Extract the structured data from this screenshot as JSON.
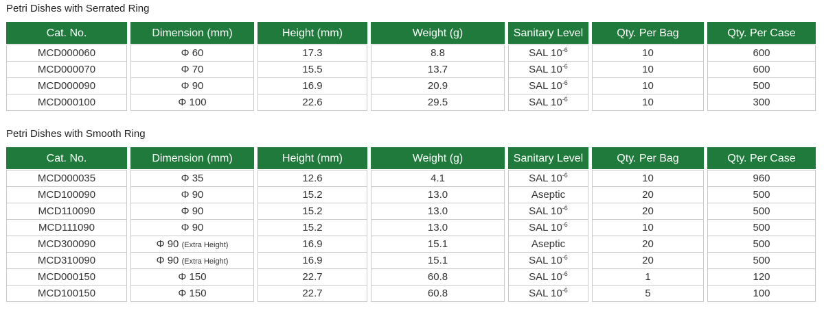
{
  "tables": [
    {
      "title": "Petri Dishes with Serrated Ring",
      "columns": [
        "Cat. No.",
        "Dimension (mm)",
        "Height (mm)",
        "Weight (g)",
        "Sanitary Level",
        "Qty. Per Bag",
        "Qty. Per Case"
      ],
      "rows": [
        [
          "MCD000060",
          "Φ 60",
          "17.3",
          "8.8",
          {
            "text": "SAL 10",
            "sup": "-6"
          },
          "10",
          "600"
        ],
        [
          "MCD000070",
          "Φ 70",
          "15.5",
          "13.7",
          {
            "text": "SAL 10",
            "sup": "-6"
          },
          "10",
          "600"
        ],
        [
          "MCD000090",
          "Φ 90",
          "16.9",
          "20.9",
          {
            "text": "SAL 10",
            "sup": "-6"
          },
          "10",
          "500"
        ],
        [
          "MCD000100",
          "Φ 100",
          "22.6",
          "29.5",
          {
            "text": "SAL 10",
            "sup": "-6"
          },
          "10",
          "300"
        ]
      ]
    },
    {
      "title": "Petri Dishes with Smooth Ring",
      "columns": [
        "Cat. No.",
        "Dimension (mm)",
        "Height (mm)",
        "Weight (g)",
        "Sanitary Level",
        "Qty. Per Bag",
        "Qty. Per Case"
      ],
      "rows": [
        [
          "MCD000035",
          "Φ 35",
          "12.6",
          "4.1",
          {
            "text": "SAL 10",
            "sup": "-6"
          },
          "10",
          "960"
        ],
        [
          "MCD100090",
          "Φ 90",
          "15.2",
          "13.0",
          "Aseptic",
          "20",
          "500"
        ],
        [
          "MCD110090",
          "Φ 90",
          "15.2",
          "13.0",
          {
            "text": "SAL 10",
            "sup": "-6"
          },
          "20",
          "500"
        ],
        [
          "MCD111090",
          "Φ 90",
          "15.2",
          "13.0",
          {
            "text": "SAL 10",
            "sup": "-6"
          },
          "10",
          "500"
        ],
        [
          "MCD300090",
          {
            "text": "Φ 90",
            "note": "(Extra Height)"
          },
          "16.9",
          "15.1",
          "Aseptic",
          "20",
          "500"
        ],
        [
          "MCD310090",
          {
            "text": "Φ 90",
            "note": "(Extra Height)"
          },
          "16.9",
          "15.1",
          {
            "text": "SAL 10",
            "sup": "-6"
          },
          "20",
          "500"
        ],
        [
          "MCD000150",
          "Φ 150",
          "22.7",
          "60.8",
          {
            "text": "SAL 10",
            "sup": "-6"
          },
          "1",
          "120"
        ],
        [
          "MCD100150",
          "Φ 150",
          "22.7",
          "60.8",
          {
            "text": "SAL 10",
            "sup": "-6"
          },
          "5",
          "100"
        ]
      ]
    }
  ]
}
